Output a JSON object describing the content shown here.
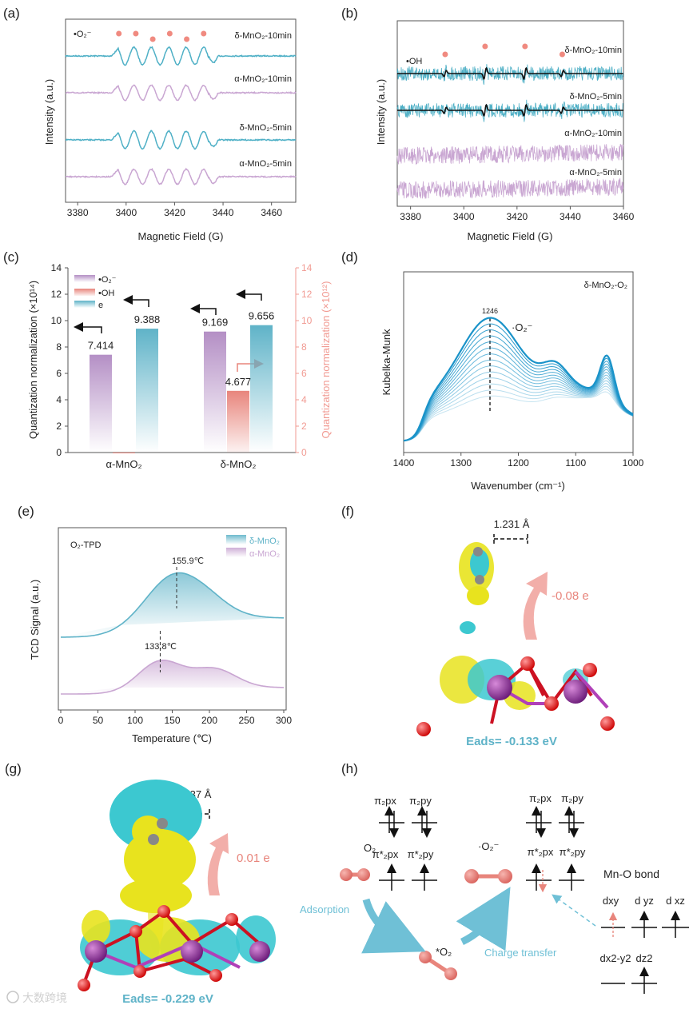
{
  "panels": {
    "a": "(a)",
    "b": "(b)",
    "c": "(c)",
    "d": "(d)",
    "e": "(e)",
    "f": "(f)",
    "g": "(g)",
    "h": "(h)"
  },
  "chart_data": [
    {
      "id": "a",
      "type": "line",
      "title": "•O₂⁻",
      "xlabel": "Magnetic Field (G)",
      "ylabel": "Intensity (a.u.)",
      "xlim": [
        3375,
        3470
      ],
      "xticks": [
        3380,
        3400,
        3420,
        3440,
        3460
      ],
      "peak_markers_G": [
        3397,
        3404,
        3411,
        3418,
        3425,
        3432
      ],
      "series": [
        {
          "name": "δ-MnO₂-10min",
          "color": "#4fb0c6"
        },
        {
          "name": "α-MnO₂-10min",
          "color": "#c9a6d2"
        },
        {
          "name": "δ-MnO₂-5min",
          "color": "#4fb0c6"
        },
        {
          "name": "α-MnO₂-5min",
          "color": "#c9a6d2"
        }
      ]
    },
    {
      "id": "b",
      "type": "line",
      "title": "•OH",
      "xlabel": "Magnetic Field (G)",
      "ylabel": "Intensity (a.u.)",
      "xlim": [
        3375,
        3460
      ],
      "xticks": [
        3380,
        3400,
        3420,
        3440,
        3460
      ],
      "peak_markers_G": [
        3393,
        3408,
        3423,
        3437
      ],
      "series": [
        {
          "name": "δ-MnO₂-10min",
          "color": "#4fb0c6",
          "fit": true
        },
        {
          "name": "δ-MnO₂-5min",
          "color": "#4fb0c6",
          "fit": true
        },
        {
          "name": "α-MnO₂-10min",
          "color": "#c9a6d2",
          "fit": false
        },
        {
          "name": "α-MnO₂-5min",
          "color": "#c9a6d2",
          "fit": false
        }
      ]
    },
    {
      "id": "c",
      "type": "bar",
      "categories": [
        "α-MnO₂",
        "δ-MnO₂"
      ],
      "ylabel": "Quantization normalization (×10¹⁴)",
      "y2label": "Quantization normalization (×10¹²)",
      "ylim": [
        0,
        14
      ],
      "yticks": [
        0,
        2,
        4,
        6,
        8,
        10,
        12,
        14
      ],
      "series": [
        {
          "name": "•O₂⁻",
          "axis": "left",
          "color": "#b48fc5",
          "values": [
            7.414,
            9.169
          ],
          "labels": [
            "7.414",
            "9.169"
          ]
        },
        {
          "name": "•OH",
          "axis": "right",
          "color": "#e8857c",
          "values": [
            0,
            4.677
          ],
          "labels": [
            "",
            "4.677"
          ]
        },
        {
          "name": "e",
          "axis": "left",
          "color": "#5fb3c8",
          "values": [
            9.388,
            9.656
          ],
          "labels": [
            "9.388",
            "9.656"
          ]
        }
      ]
    },
    {
      "id": "d",
      "type": "line",
      "title": "δ-MnO₂-O₂",
      "xlabel": "Wavenumber (cm⁻¹)",
      "ylabel": "Kubelka-Munk",
      "xlim": [
        1400,
        1000
      ],
      "xticks": [
        1400,
        1300,
        1200,
        1100,
        1000
      ],
      "annotation_peak": "1246",
      "annotation_species": "·O₂⁻",
      "color": "#1a93c9",
      "n_curves": 14
    },
    {
      "id": "e",
      "type": "area",
      "title": "O₂-TPD",
      "xlabel": "Temperature (℃)",
      "ylabel": "TCD Signal (a.u.)",
      "xlim": [
        0,
        300
      ],
      "xticks": [
        0,
        50,
        100,
        150,
        200,
        250,
        300
      ],
      "series": [
        {
          "name": "δ-MnO₂",
          "color": "#5fb3c8",
          "peak": "155.9℃",
          "peak_value": 155.9
        },
        {
          "name": "α-MnO₂",
          "color": "#c9a6d2",
          "peak": "133.8℃",
          "peak_value": 133.8
        }
      ]
    }
  ],
  "f": {
    "bond": "1.231 Å",
    "charge": "-0.08 e",
    "eads": "Eads= -0.133 eV"
  },
  "g": {
    "bond": "1.237 Å",
    "charge": "0.01 e",
    "eads": "Eads= -0.229 eV"
  },
  "h": {
    "o2": "O₂",
    "o2_ads": "*O₂",
    "superoxide": "·O₂⁻",
    "pi_2px": "π₂px",
    "pi_2py": "π₂py",
    "pis_2px": "π*₂px",
    "pis_2py": "π*₂py",
    "adsorption": "Adsorption",
    "charge_transfer": "Charge transfer",
    "mno_bond": "Mn-O bond",
    "dxy": "dxy",
    "dyz": "d yz",
    "dxz": "d xz",
    "dx2y2": "dx2-y2",
    "dz2": "dz2"
  },
  "watermark": "大数跨境"
}
